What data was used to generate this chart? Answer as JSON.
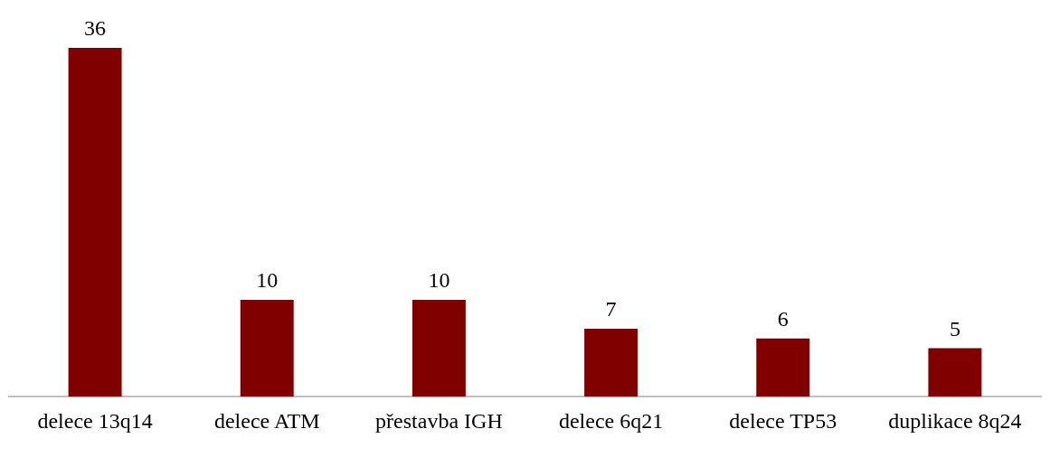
{
  "chart_data": {
    "type": "bar",
    "categories": [
      "delece 13q14",
      "delece ATM",
      "přestavba IGH",
      "delece 6q21",
      "delece TP53",
      "duplikace 8q24"
    ],
    "values": [
      36,
      10,
      10,
      7,
      6,
      5
    ],
    "color": "#800000",
    "data_labels": true,
    "grid": false,
    "legend": false
  }
}
